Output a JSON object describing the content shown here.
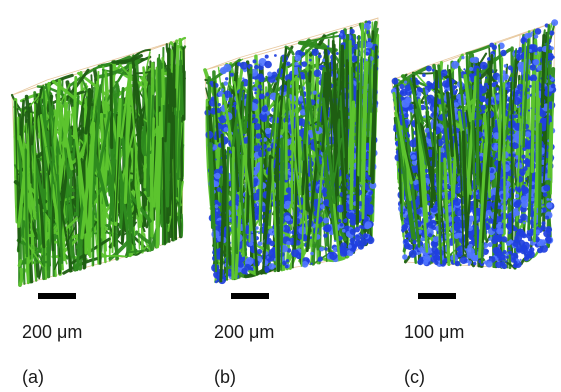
{
  "panels": [
    {
      "label": "(a)",
      "scale_text": "200 μm"
    },
    {
      "label": "(b)",
      "scale_text": "200 μm"
    },
    {
      "label": "(c)",
      "scale_text": "100 μm"
    }
  ],
  "colors": {
    "fiber_green": "#2e8b1f",
    "fiber_green_light": "#5cc42e",
    "fiber_green_dark": "#1e5e12",
    "particle_blue": "#1f3fe0",
    "particle_blue_light": "#4f74ff",
    "box_edge": "#e8c9a0",
    "scale_bar": "#000000"
  }
}
